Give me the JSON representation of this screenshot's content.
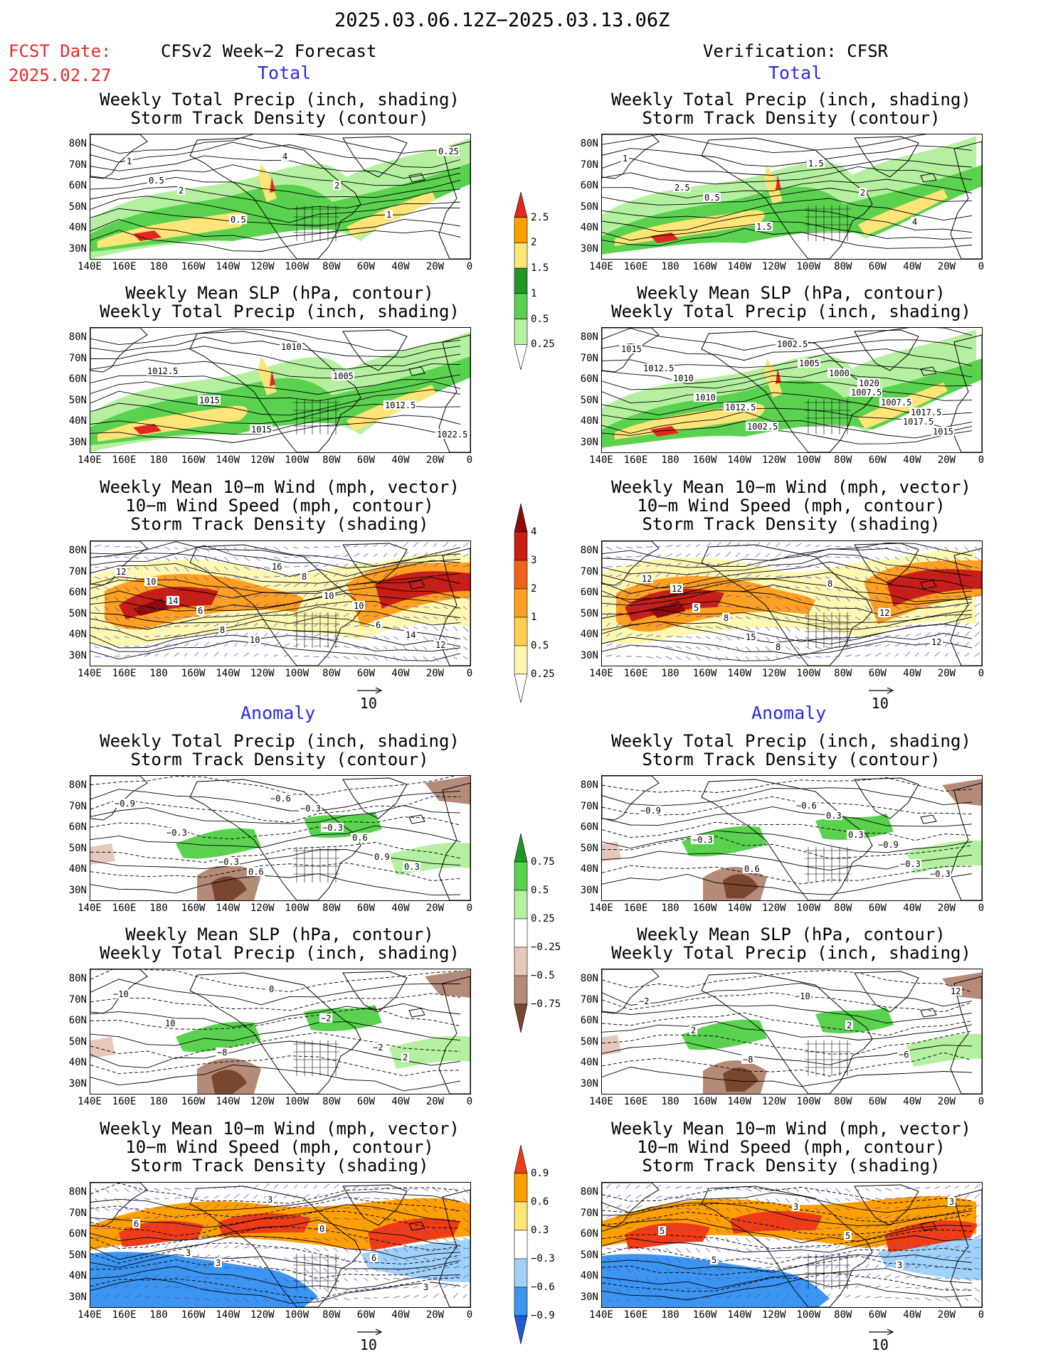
{
  "header": {
    "period": "2025.03.06.12Z−2025.03.13.06Z",
    "fcst_label": "FCST Date:",
    "fcst_date": "2025.02.27",
    "left_title": "CFSv2 Week−2 Forecast",
    "right_title": "Verification: CFSR"
  },
  "sections": {
    "total": "Total",
    "anomaly": "Anomaly"
  },
  "panel_titles": {
    "precip_storm": [
      "Weekly Total Precip (inch, shading)",
      "Storm Track Density (contour)"
    ],
    "slp_precip": [
      "Weekly Mean SLP (hPa, contour)",
      "Weekly Total Precip (inch, shading)"
    ],
    "wind_storm": [
      "Weekly Mean 10−m Wind (mph, vector)",
      "10−m Wind Speed (mph, contour)",
      "Storm Track Density (shading)"
    ]
  },
  "axes": {
    "lat_labels": [
      "80N",
      "70N",
      "60N",
      "50N",
      "40N",
      "30N"
    ],
    "lon_labels": [
      "140E",
      "160E",
      "180",
      "160W",
      "140W",
      "120W",
      "100W",
      "80W",
      "60W",
      "40W",
      "20W",
      "0"
    ]
  },
  "colorbars": {
    "precip_total": [
      "2.5",
      "2",
      "1.5",
      "1",
      "0.5",
      "0.25"
    ],
    "storm_total": [
      "4",
      "3",
      "2",
      "1",
      "0.5",
      "0.25"
    ],
    "precip_anom": [
      "0.75",
      "0.5",
      "0.25",
      "−0.25",
      "−0.5",
      "−0.75"
    ],
    "storm_anom": [
      "0.9",
      "0.6",
      "0.3",
      "−0.3",
      "−0.6",
      "−0.9"
    ]
  },
  "vector_ref": "10",
  "colors": {
    "precip_total": [
      "#ffffff",
      "#b4f0a0",
      "#5ad250",
      "#1e9628",
      "#ffe478",
      "#ffa000",
      "#e1281e"
    ],
    "storm_total": [
      "#ffffff",
      "#fff8b0",
      "#ffd050",
      "#ffa020",
      "#f06018",
      "#c81e14",
      "#8c0a0a"
    ],
    "precip_anom": [
      "#7a4630",
      "#b48a78",
      "#e6c8bc",
      "#ffffff",
      "#b4f0a0",
      "#5ad250",
      "#1e9628"
    ],
    "storm_anom": [
      "#1e5ad2",
      "#3c96f0",
      "#a0d2f8",
      "#ffffff",
      "#ffe478",
      "#ffa000",
      "#f03c14"
    ]
  },
  "labels": {
    "r0c0": [
      "1",
      "2",
      "0.5",
      "4",
      "2",
      "1",
      "0.25",
      "0.5"
    ],
    "r0c1": [
      "0.5",
      "1.5",
      "1.5",
      "2",
      "4",
      "1",
      "2.5"
    ],
    "r1c0": [
      "1010",
      "1005",
      "1012.5",
      "1022.5",
      "1012.5",
      "1015",
      "1015"
    ],
    "r1c1": [
      "1020",
      "1017.5",
      "1015",
      "1010",
      "1012.5",
      "1002.5",
      "1000",
      "1007.5",
      "1015",
      "1012.5",
      "1010",
      "1002.5",
      "1005",
      "1007.5",
      "1017.5"
    ],
    "r2c0": [
      "12",
      "10",
      "6",
      "10",
      "8",
      "10",
      "14",
      "12",
      "14",
      "8",
      "16",
      "10",
      "6"
    ],
    "r2c1": [
      "12",
      "8",
      "8",
      "8",
      "12",
      "12",
      "12",
      "5",
      "15"
    ],
    "r3c0": [
      "0.6",
      "−0.3",
      "0.6",
      "0.3",
      "−0.9",
      "−0.3",
      "−0.3",
      "−0.6",
      "−0.3",
      "0.9"
    ],
    "r3c1": [
      "0.3",
      "−0.9",
      "−0.3",
      "−0.9",
      "−0.3",
      "0.6",
      "−0.6",
      "0.3",
      "−0.3"
    ],
    "r4c0": [
      "2",
      "−10",
      "10",
      "−8",
      "0",
      "−2",
      "−2"
    ],
    "r4c1": [
      "−2",
      "2",
      "−8",
      "−10",
      "2",
      "−6",
      "12"
    ],
    "r5c0": [
      "3",
      "3",
      "0",
      "6",
      "3",
      "6",
      "3"
    ],
    "r5c1": [
      "3",
      "5",
      "3",
      "3",
      "5",
      "5"
    ]
  }
}
